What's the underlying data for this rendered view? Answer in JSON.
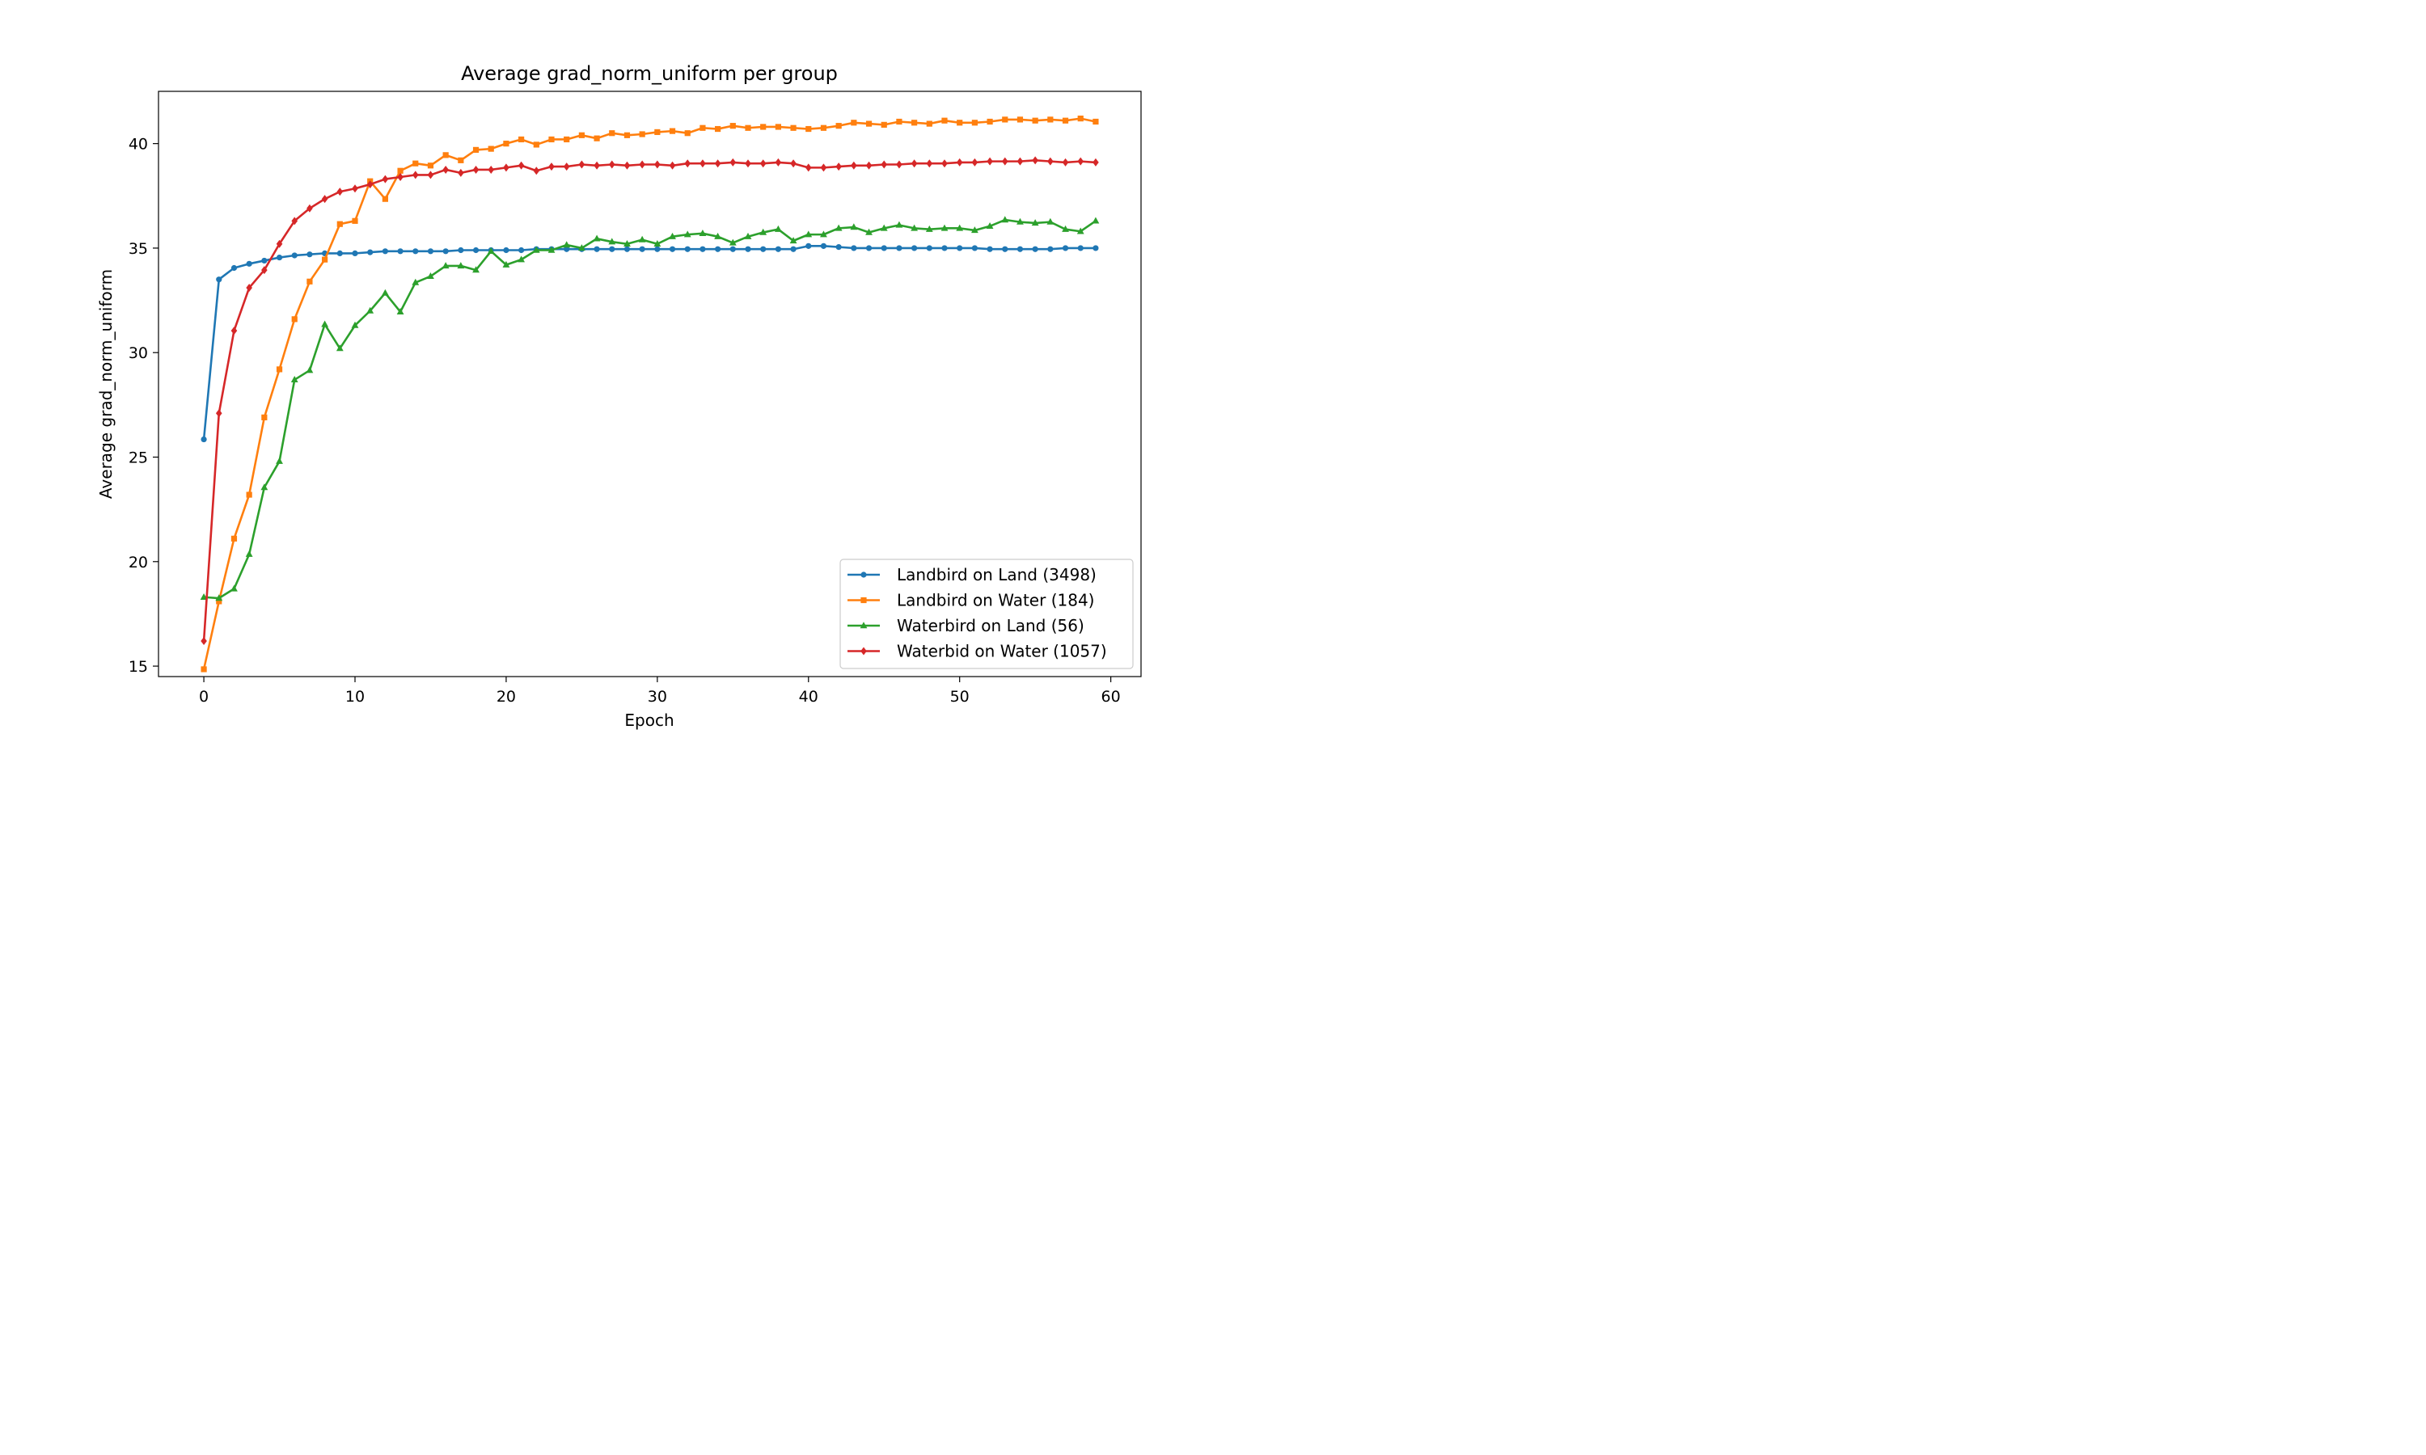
{
  "chart_data": {
    "type": "line",
    "title": "Average grad_norm_uniform per group",
    "xlabel": "Epoch",
    "ylabel": "Average grad_norm_uniform",
    "xlim": [
      -3,
      62
    ],
    "ylim": [
      14.5,
      42.5
    ],
    "xticks": [
      0,
      10,
      20,
      30,
      40,
      50,
      60
    ],
    "yticks": [
      15,
      20,
      25,
      30,
      35,
      40
    ],
    "grid": false,
    "legend_position": "lower-right",
    "x": [
      0,
      1,
      2,
      3,
      4,
      5,
      6,
      7,
      8,
      9,
      10,
      11,
      12,
      13,
      14,
      15,
      16,
      17,
      18,
      19,
      20,
      21,
      22,
      23,
      24,
      25,
      26,
      27,
      28,
      29,
      30,
      31,
      32,
      33,
      34,
      35,
      36,
      37,
      38,
      39,
      40,
      41,
      42,
      43,
      44,
      45,
      46,
      47,
      48,
      49,
      50,
      51,
      52,
      53,
      54,
      55,
      56,
      57,
      58,
      59
    ],
    "series": [
      {
        "name": "Landbird on Land (3498)",
        "color": "#1f77b4",
        "marker": "circle",
        "values": [
          25.85,
          33.5,
          34.05,
          34.25,
          34.4,
          34.55,
          34.65,
          34.7,
          34.75,
          34.75,
          34.75,
          34.8,
          34.85,
          34.85,
          34.85,
          34.85,
          34.85,
          34.9,
          34.9,
          34.9,
          34.9,
          34.9,
          34.95,
          34.95,
          34.95,
          34.95,
          34.95,
          34.95,
          34.95,
          34.95,
          34.95,
          34.95,
          34.95,
          34.95,
          34.95,
          34.95,
          34.95,
          34.95,
          34.95,
          34.95,
          35.1,
          35.1,
          35.05,
          35.0,
          35.0,
          35.0,
          35.0,
          35.0,
          35.0,
          35.0,
          35.0,
          35.0,
          34.95,
          34.95,
          34.95,
          34.95,
          34.95,
          35.0,
          35.0,
          35.0
        ]
      },
      {
        "name": "Landbird on Water (184)",
        "color": "#ff7f0e",
        "marker": "square",
        "values": [
          14.85,
          18.1,
          21.1,
          23.2,
          26.9,
          29.2,
          31.6,
          33.4,
          34.45,
          36.15,
          36.3,
          38.2,
          37.35,
          38.7,
          39.05,
          38.95,
          39.45,
          39.2,
          39.7,
          39.75,
          40.0,
          40.2,
          39.95,
          40.2,
          40.2,
          40.4,
          40.25,
          40.5,
          40.4,
          40.45,
          40.55,
          40.6,
          40.5,
          40.75,
          40.7,
          40.85,
          40.75,
          40.8,
          40.8,
          40.75,
          40.7,
          40.75,
          40.85,
          41.0,
          40.95,
          40.9,
          41.05,
          41.0,
          40.95,
          41.1,
          41.0,
          41.0,
          41.05,
          41.15,
          41.15,
          41.1,
          41.15,
          41.1,
          41.2,
          41.05
        ]
      },
      {
        "name": "Waterbird on Land (56)",
        "color": "#2ca02c",
        "marker": "triangle",
        "values": [
          18.3,
          18.25,
          18.7,
          20.35,
          23.55,
          24.8,
          28.7,
          29.15,
          31.35,
          30.2,
          31.3,
          32.0,
          32.85,
          31.95,
          33.35,
          33.65,
          34.15,
          34.15,
          33.95,
          34.85,
          34.2,
          34.45,
          34.9,
          34.9,
          35.15,
          35.0,
          35.45,
          35.3,
          35.2,
          35.4,
          35.2,
          35.55,
          35.65,
          35.7,
          35.55,
          35.25,
          35.55,
          35.75,
          35.9,
          35.35,
          35.65,
          35.65,
          35.95,
          36.0,
          35.75,
          35.95,
          36.1,
          35.95,
          35.9,
          35.95,
          35.95,
          35.85,
          36.05,
          36.35,
          36.25,
          36.2,
          36.25,
          35.9,
          35.8,
          36.3
        ]
      },
      {
        "name": "Waterbid on Water (1057)",
        "color": "#d62728",
        "marker": "diamond",
        "values": [
          16.2,
          27.1,
          31.05,
          33.1,
          33.95,
          35.2,
          36.3,
          36.9,
          37.35,
          37.7,
          37.85,
          38.05,
          38.3,
          38.4,
          38.5,
          38.5,
          38.75,
          38.6,
          38.75,
          38.75,
          38.85,
          38.95,
          38.7,
          38.9,
          38.9,
          39.0,
          38.95,
          39.0,
          38.95,
          39.0,
          39.0,
          38.95,
          39.05,
          39.05,
          39.05,
          39.1,
          39.05,
          39.05,
          39.1,
          39.05,
          38.85,
          38.85,
          38.9,
          38.95,
          38.95,
          39.0,
          39.0,
          39.05,
          39.05,
          39.05,
          39.1,
          39.1,
          39.15,
          39.15,
          39.15,
          39.2,
          39.15,
          39.1,
          39.15,
          39.1
        ]
      }
    ]
  }
}
